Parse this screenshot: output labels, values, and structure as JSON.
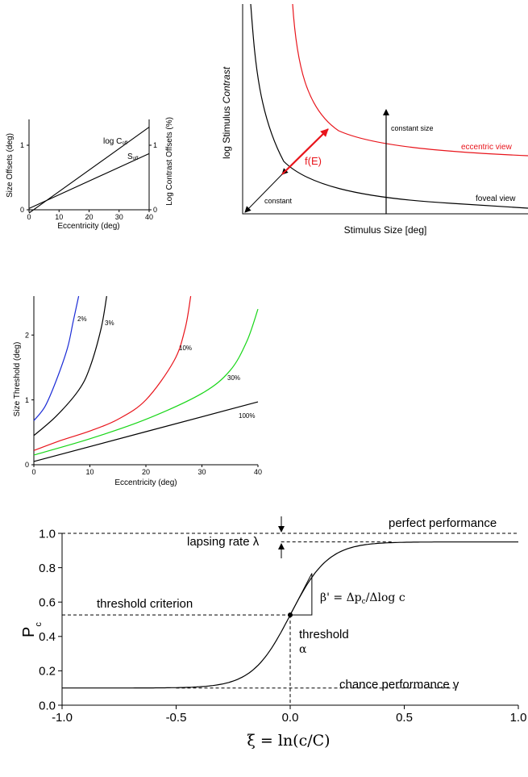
{
  "colors": {
    "black": "#000000",
    "red": "#e8141b",
    "blue": "#1a2bd6",
    "green": "#18d618"
  },
  "chart_data": [
    {
      "id": "offsets",
      "type": "line",
      "xlabel": "Eccentricity (deg)",
      "ylabel": "Size Offsets (deg)",
      "ylabel_right": "Log Contrast Offsets (%)",
      "xlim": [
        0,
        40
      ],
      "ylim": [
        0,
        1.4
      ],
      "x_ticks": [
        "0",
        "10",
        "20",
        "30",
        "40"
      ],
      "y_ticks": [
        "0",
        "1"
      ],
      "y_right_ticks": [
        "0",
        "1"
      ],
      "series": [
        {
          "name": "log C",
          "name_sub": "off",
          "x": [
            0,
            40
          ],
          "y": [
            -0.05,
            1.28
          ],
          "color": "black"
        },
        {
          "name": "S",
          "name_sub": "off",
          "x": [
            0,
            40
          ],
          "y": [
            0.02,
            0.87
          ],
          "color": "black"
        }
      ]
    },
    {
      "id": "schematic",
      "type": "line",
      "xlabel": "Stimulus Size [deg]",
      "ylabel_plain": "log Stimulus ",
      "ylabel_italic": "Contrast",
      "annotations": {
        "constant": "constant",
        "constant_size": "constant size",
        "fE": "f(E)",
        "eccentric_view": "eccentric view",
        "foveal_view": "foveal view"
      },
      "series": [
        {
          "name": "foveal view",
          "color": "black"
        },
        {
          "name": "eccentric view",
          "color": "red"
        }
      ]
    },
    {
      "id": "size-threshold",
      "type": "line",
      "xlabel": "Eccentricity (deg)",
      "ylabel": "Size Threshold (deg)",
      "xlim": [
        0,
        40
      ],
      "ylim": [
        0,
        2.6
      ],
      "x_ticks": [
        "0",
        "10",
        "20",
        "30",
        "40"
      ],
      "y_ticks": [
        "0",
        "1",
        "2"
      ],
      "series": [
        {
          "name": "2%",
          "color": "blue",
          "x": [
            0,
            2,
            4,
            6,
            7,
            8
          ],
          "y": [
            0.68,
            0.9,
            1.3,
            1.8,
            2.2,
            2.6
          ]
        },
        {
          "name": "3%",
          "color": "black",
          "x": [
            0,
            4,
            8,
            10,
            12,
            13
          ],
          "y": [
            0.45,
            0.75,
            1.15,
            1.5,
            2.1,
            2.6
          ]
        },
        {
          "name": "10%",
          "color": "red",
          "x": [
            0,
            5,
            10,
            15,
            20,
            25,
            27,
            28
          ],
          "y": [
            0.22,
            0.38,
            0.52,
            0.7,
            1.0,
            1.6,
            2.1,
            2.6
          ]
        },
        {
          "name": "30%",
          "color": "green",
          "x": [
            0,
            10,
            20,
            30,
            35,
            38,
            40
          ],
          "y": [
            0.15,
            0.4,
            0.7,
            1.1,
            1.45,
            1.9,
            2.4
          ]
        },
        {
          "name": "100%",
          "color": "black",
          "x": [
            0,
            40
          ],
          "y": [
            0.05,
            0.97
          ]
        }
      ]
    },
    {
      "id": "psychometric",
      "type": "line",
      "xlabel": "ξ = ln(c/C)",
      "ylabel": "P",
      "ylabel_sub": "c",
      "xlim": [
        -1.0,
        1.0
      ],
      "ylim": [
        0.0,
        1.0
      ],
      "x_ticks": [
        "-1.0",
        "-0.5",
        "0.0",
        "0.5",
        "1.0"
      ],
      "y_ticks": [
        "0.0",
        "0.2",
        "0.4",
        "0.6",
        "0.8",
        "1.0"
      ],
      "gamma": 0.1,
      "lambda": 0.05,
      "threshold": 0.0,
      "criterion": 0.525,
      "series": [
        {
          "name": "",
          "color": "black"
        }
      ],
      "annotations": {
        "perfect": "perfect performance",
        "lapsing": "lapsing rate λ",
        "criterion": "threshold criterion",
        "beta": "β' = Δp",
        "beta_sub": "c",
        "beta_tail": "/Δlog c",
        "threshold": "threshold",
        "alpha": "α",
        "chance": "chance performance γ"
      }
    }
  ]
}
